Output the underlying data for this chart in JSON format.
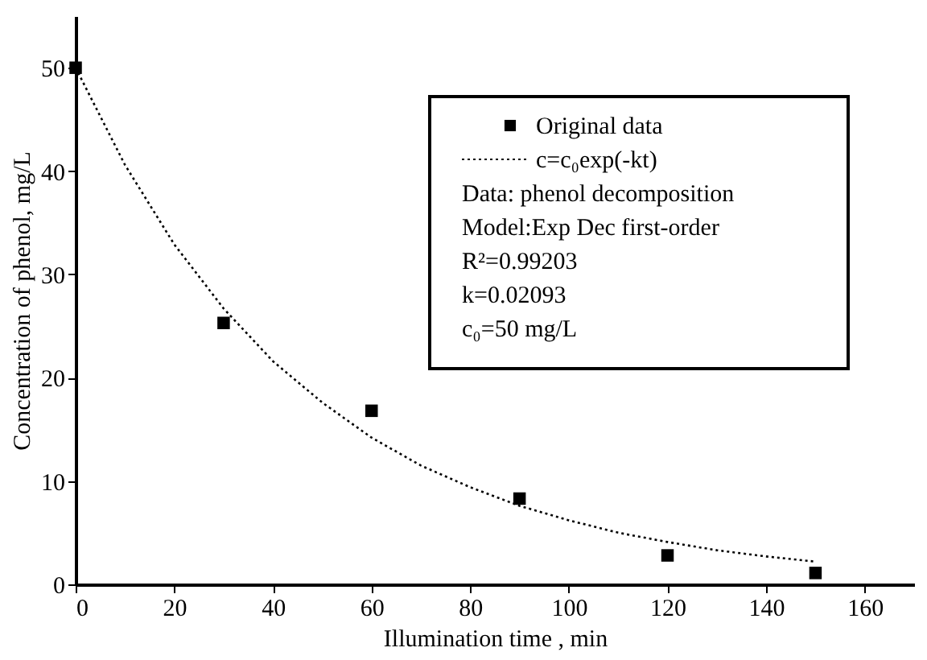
{
  "chart_data": {
    "type": "scatter",
    "xlabel": "Illumination time , min",
    "ylabel": "Concentration of phenol, mg/L",
    "xlim": [
      0,
      170
    ],
    "ylim": [
      0,
      55
    ],
    "xticks": [
      0,
      20,
      40,
      60,
      80,
      100,
      120,
      140,
      160
    ],
    "yticks": [
      0,
      10,
      20,
      30,
      40,
      50
    ],
    "grid": false,
    "legend": "top right",
    "series": [
      {
        "name": "Original data",
        "type": "scatter",
        "marker": "square",
        "color": "#000000",
        "x": [
          0,
          30,
          60,
          90,
          120,
          150
        ],
        "values": [
          50,
          25.3,
          16.8,
          8.3,
          2.8,
          1.1
        ]
      },
      {
        "name": "c=c₀exp(-kt)",
        "type": "line",
        "line_style": "dotted",
        "marker": "none",
        "color": "#000000",
        "x": [
          0,
          10,
          20,
          30,
          40,
          50,
          60,
          70,
          80,
          90,
          100,
          110,
          120,
          130,
          140,
          150
        ],
        "values": [
          50,
          40.6,
          32.9,
          26.7,
          21.6,
          17.6,
          14.2,
          11.5,
          9.4,
          7.6,
          6.2,
          5.0,
          4.1,
          3.3,
          2.7,
          2.2
        ]
      }
    ],
    "annotations": [
      "Data: phenol decomposition",
      "Model:Exp Dec first-order",
      "R²=0.99203",
      "k=0.02093",
      "c₀=50 mg/L"
    ]
  }
}
